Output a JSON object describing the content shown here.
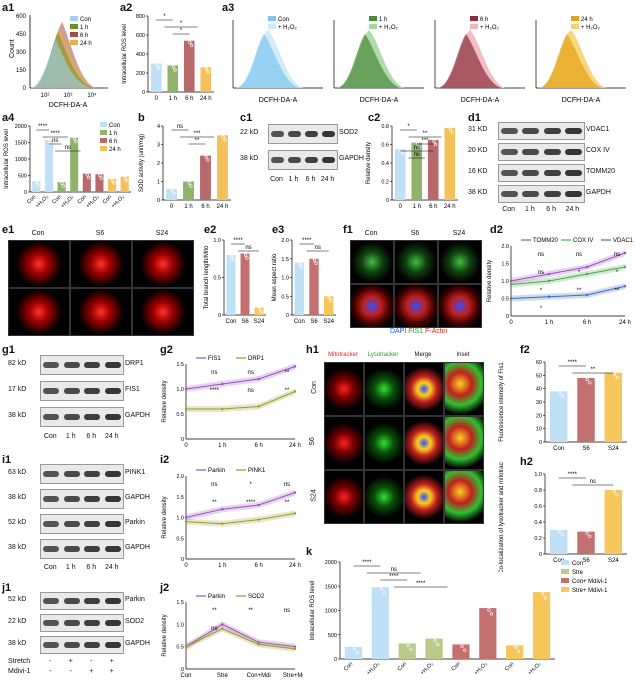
{
  "panels": {
    "a1": {
      "label": "a1",
      "xlabel": "DCFH-DA-A",
      "ylabel": "Count",
      "legend": [
        "Con",
        "1 h",
        "6 h",
        "24 h"
      ],
      "xticks": [
        "10²",
        "10³",
        "10⁴"
      ],
      "yticks": [
        "0",
        "150",
        "300",
        "450",
        "600"
      ],
      "colors": [
        "#9fd3f0",
        "#6b8e23",
        "#a0504a",
        "#e8b040"
      ]
    },
    "a2": {
      "label": "a2",
      "ylabel": "Intracellular ROS level",
      "categories": [
        "0",
        "1 h",
        "6 h",
        "24 h"
      ],
      "values": [
        300,
        280,
        540,
        260
      ],
      "yticks": [
        "0",
        "200",
        "400",
        "600",
        "800"
      ],
      "sig": [
        "*",
        "*",
        "*"
      ],
      "colors": [
        "#bfe0f5",
        "#8fb36b",
        "#b86a6a",
        "#f3c15a"
      ]
    },
    "a3": {
      "label": "a3",
      "xlabel": "DCFH-DA-A",
      "plots": [
        {
          "a": "Con",
          "b": "+ H₂O₂",
          "ca": "#7fc7ef",
          "cb": "#cde9f7"
        },
        {
          "a": "1 h",
          "b": "+ H₂O₂",
          "ca": "#4c8a3a",
          "cb": "#a7d7a1"
        },
        {
          "a": "6 h",
          "b": "+ H₂O₂",
          "ca": "#8a2f3a",
          "cb": "#f1b6bd"
        },
        {
          "a": "24 h",
          "b": "+ H₂O₂",
          "ca": "#e3a21a",
          "cb": "#f7d16a"
        }
      ]
    },
    "a4": {
      "label": "a4",
      "ylabel": "Intracellular ROS level",
      "legend": [
        "Con",
        "1 h",
        "6 h",
        "24 h"
      ],
      "xlabels": [
        "Con",
        "+H₂O₂",
        "Con",
        "+H₂O₂",
        "Con",
        "+H₂O₂",
        "Con",
        "+H₂O₂"
      ],
      "values": [
        330,
        1580,
        300,
        1650,
        560,
        540,
        400,
        470
      ],
      "yticks": [
        "0",
        "500",
        "1000",
        "1500",
        "2000"
      ],
      "sig": [
        "****",
        "****",
        "ns",
        "ns"
      ]
    },
    "b": {
      "label": "b",
      "ylabel": "SOD activity (unit/mg)",
      "categories": [
        "0",
        "1 h",
        "6 h",
        "24 h"
      ],
      "values": [
        0.6,
        1.0,
        2.4,
        3.5
      ],
      "yticks": [
        "0",
        "1",
        "2",
        "3",
        "4"
      ],
      "sig": [
        "ns",
        "***",
        "**"
      ]
    },
    "c1": {
      "label": "c1",
      "rows": [
        {
          "kd": "22 kD",
          "name": "SOD2"
        },
        {
          "kd": "38 kD",
          "name": "GAPDH"
        }
      ],
      "lanes": [
        "Con",
        "1 h",
        "6 h",
        "24 h"
      ]
    },
    "c2": {
      "label": "c2",
      "ylabel": "Relative density",
      "categories": [
        "0",
        "1 h",
        "6 h",
        "24 h"
      ],
      "values": [
        0.55,
        0.62,
        0.65,
        0.78
      ],
      "yticks": [
        "0",
        "0.2",
        "0.4",
        "0.6",
        "0.8"
      ],
      "sig": [
        "*",
        "**",
        "***",
        "ns",
        "ns"
      ]
    },
    "d1": {
      "label": "d1",
      "rows": [
        {
          "kd": "31 KD",
          "name": "VDAC1"
        },
        {
          "kd": "20 KD",
          "name": "COX IV"
        },
        {
          "kd": "16 KD",
          "name": "TOMM20"
        },
        {
          "kd": "38 KD",
          "name": "GAPDH"
        }
      ],
      "lanes": [
        "Con",
        "1 h",
        "6 h",
        "24 h"
      ]
    },
    "d2": {
      "label": "d2",
      "ylabel": "Relative density",
      "xticks": [
        "0",
        "1 h",
        "6 h",
        "24 h"
      ],
      "legend": [
        "TOMM20",
        "COX IV",
        "VDAC1"
      ],
      "yticks": [
        "0",
        "0.5",
        "1.0",
        "1.5",
        "2.0"
      ],
      "sig": [
        "ns",
        "ns",
        "ns",
        "ns",
        "*",
        "*",
        "*",
        "**",
        "**",
        "*"
      ]
    },
    "e1": {
      "label": "e1",
      "cols": [
        "Con",
        "S6",
        "S24"
      ]
    },
    "e2": {
      "label": "e2",
      "ylabel": "Total branch length/Mito",
      "categories": [
        "Con",
        "S6",
        "S24"
      ],
      "values": [
        0.8,
        0.82,
        0.1
      ],
      "yticks": [
        "0",
        "0.5",
        "1.0"
      ],
      "sig": [
        "****",
        "ns"
      ]
    },
    "e3": {
      "label": "e3",
      "ylabel": "Mean aspect ratio",
      "categories": [
        "Con",
        "S6",
        "S24"
      ],
      "values": [
        1.4,
        1.5,
        0.5
      ],
      "yticks": [
        "0",
        "0.5",
        "1.0",
        "1.5",
        "2.0"
      ],
      "sig": [
        "****",
        "ns"
      ]
    },
    "f1": {
      "label": "f1",
      "cols": [
        "Con",
        "S6",
        "S24"
      ],
      "footer_dapi": "DAPI",
      "footer_fis": "FIS1",
      "footer_actin": "F-Actin"
    },
    "f2": {
      "label": "f2",
      "ylabel": "Fluorescence intensity of Fis1",
      "categories": [
        "Con",
        "S6",
        "S24"
      ],
      "values": [
        38,
        48,
        52
      ],
      "yticks": [
        "0",
        "10",
        "20",
        "30",
        "40",
        "50",
        "60"
      ],
      "sig": [
        "****",
        "**"
      ]
    },
    "g1": {
      "label": "g1",
      "rows": [
        {
          "kd": "82 kD",
          "name": "DRP1"
        },
        {
          "kd": "17 kD",
          "name": "FIS1"
        },
        {
          "kd": "38 kD",
          "name": "GAPDH"
        }
      ],
      "lanes": [
        "Con",
        "1 h",
        "6 h",
        "24 h"
      ]
    },
    "g2": {
      "label": "g2",
      "ylabel": "Relative density",
      "xticks": [
        "0",
        "1 h",
        "6 h",
        "24 h"
      ],
      "legend": [
        "FIS1",
        "DRP1"
      ],
      "yticks": [
        "0",
        "0.5",
        "1.0",
        "1.5"
      ],
      "sig": [
        "ns",
        "ns",
        "**",
        "****",
        "ns",
        "**"
      ]
    },
    "h1": {
      "label": "h1",
      "cols": [
        "Mitotracker",
        "Lysotracker",
        "Merge",
        "Inset"
      ],
      "rows": [
        "Con",
        "S6",
        "S24"
      ]
    },
    "h2": {
      "label": "h2",
      "ylabel": "Co-localization of lysotracker and mitotracker",
      "categories": [
        "Con",
        "S6",
        "S24"
      ],
      "values": [
        0.3,
        0.28,
        0.8
      ],
      "yticks": [
        "0",
        "0.2",
        "0.4",
        "0.6",
        "0.8",
        "1.0"
      ],
      "sig": [
        "****",
        "ns"
      ]
    },
    "i1": {
      "label": "i1",
      "rows": [
        {
          "kd": "63 kD",
          "name": "PINK1"
        },
        {
          "kd": "38 kD",
          "name": "GAPDH"
        },
        {
          "kd": "52 kD",
          "name": "Parkin"
        },
        {
          "kd": "38 kD",
          "name": "GAPDH"
        }
      ],
      "lanes": [
        "Con",
        "1 h",
        "6 h",
        "24 h"
      ]
    },
    "i2": {
      "label": "i2",
      "ylabel": "Relative density",
      "xticks": [
        "0",
        "1 h",
        "6 h",
        "24 h"
      ],
      "legend": [
        "Parkin",
        "PINK1"
      ],
      "yticks": [
        "0",
        "0.5",
        "1.0",
        "1.5",
        "2.0"
      ],
      "sig": [
        "ns",
        "*",
        "ns",
        "**",
        "****",
        "**"
      ]
    },
    "j1": {
      "label": "j1",
      "rows": [
        {
          "kd": "52 kD",
          "name": "Parkin"
        },
        {
          "kd": "22 kD",
          "name": "SOD2"
        },
        {
          "kd": "38 kD",
          "name": "GAPDH"
        }
      ],
      "treat": [
        {
          "name": "Stretch",
          "vals": [
            "-",
            "+",
            "-",
            "+"
          ]
        },
        {
          "name": "Mdivi-1",
          "vals": [
            "-",
            "-",
            "+",
            "+"
          ]
        }
      ]
    },
    "j2": {
      "label": "j2",
      "ylabel": "Relative density",
      "xticks": [
        "Con",
        "Stre",
        "Con+Mdi",
        "Stre+Mdi"
      ],
      "legend": [
        "Parkin",
        "SOD2"
      ],
      "yticks": [
        "0",
        "0.5",
        "1.0",
        "1.5"
      ],
      "sig": [
        "**",
        "**",
        "ns",
        "ns"
      ]
    },
    "k": {
      "label": "k",
      "ylabel": "Intracellular ROS level",
      "legend": [
        "Con",
        "Stre",
        "Con+ Mdivi-1",
        "Stre+ Mdivi-1"
      ],
      "xlabels": [
        "Con",
        "+H₂O₂",
        "Con",
        "+H₂O₂",
        "Con",
        "+H₂O₂",
        "Con",
        "+H₂O₂"
      ],
      "values": [
        250,
        1480,
        320,
        420,
        300,
        1050,
        280,
        1380
      ],
      "yticks": [
        "0",
        "500",
        "1000",
        "1500",
        "2000"
      ],
      "sig": [
        "****",
        "ns",
        "****",
        "****"
      ],
      "colors": [
        "#bfe0f5",
        "#b9c98a",
        "#c57070",
        "#f6c65a"
      ]
    }
  },
  "colors": {
    "con": "#bfe0f5",
    "h1": "#8fb36b",
    "h6": "#b86a6a",
    "h24": "#f3c15a",
    "purple": "#9a4fc0",
    "olive": "#9a9a2a",
    "blue": "#3f6cc0",
    "green": "#4aa84a",
    "red": "#e02020"
  }
}
